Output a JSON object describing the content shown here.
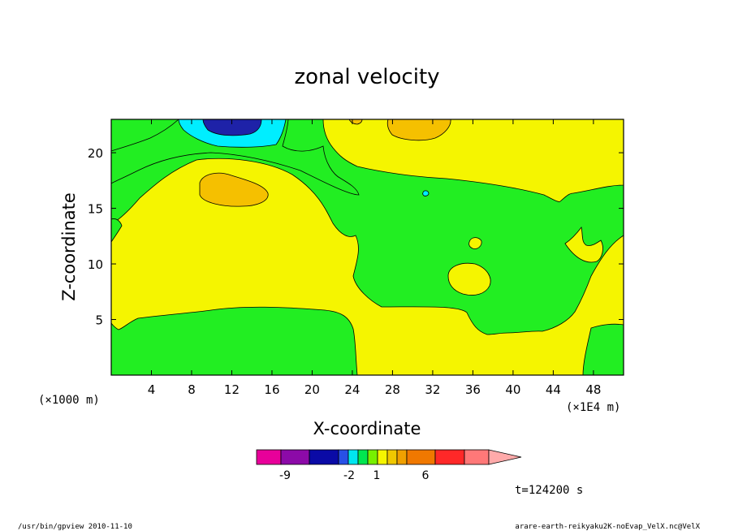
{
  "chart_data": {
    "type": "heatmap",
    "title": "zonal velocity",
    "xlabel": "X-coordinate",
    "ylabel": "Z-coordinate",
    "x_unit_left": "(×1000 m)",
    "x_unit_right": "(×1E4 m)",
    "xlim": [
      0,
      51
    ],
    "ylim": [
      0,
      23
    ],
    "x_ticks": [
      4,
      8,
      12,
      16,
      20,
      24,
      28,
      32,
      36,
      40,
      44,
      48
    ],
    "y_ticks": [
      5,
      10,
      15,
      20
    ],
    "colorbar": {
      "colors": [
        "#e8009a",
        "#8c0aa8",
        "#0a0aa6",
        "#2850e6",
        "#00e6f0",
        "#00e650",
        "#78f000",
        "#f5f500",
        "#f0c800",
        "#f0a000",
        "#f07800",
        "#ff2828",
        "#ff7878",
        "#ffaaaa"
      ],
      "tick_labels": [
        "-9",
        "-2",
        "1",
        "6"
      ]
    },
    "regions": [
      {
        "level": "green",
        "color": "#22ee22",
        "desc": "background"
      },
      {
        "level": "yellow",
        "color": "#f5f500"
      },
      {
        "level": "orange",
        "color": "#f5c000"
      },
      {
        "level": "cyan",
        "color": "#00eeff"
      },
      {
        "level": "blue",
        "color": "#2020b0"
      }
    ]
  },
  "time_label": "t=124200 s",
  "footer_left": "/usr/bin/gpview   2010-11-10",
  "footer_right": "arare-earth-reikyaku2K-noEvap_VelX.nc@VelX"
}
